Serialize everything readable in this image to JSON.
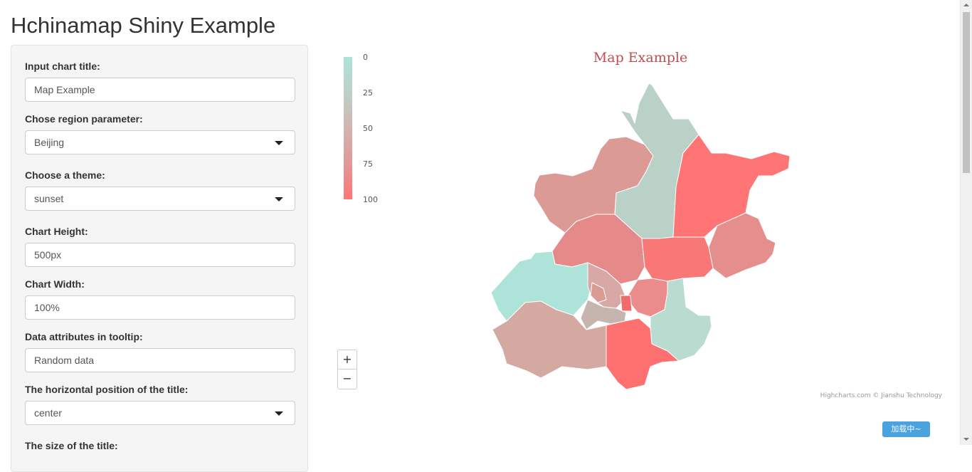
{
  "app": {
    "title": "Hchinamap Shiny Example"
  },
  "sidebar": {
    "fields": [
      {
        "label": "Input chart title:",
        "type": "text",
        "value": "Map Example"
      },
      {
        "label": "Chose region parameter:",
        "type": "select",
        "value": "Beijing"
      },
      {
        "label": "Choose a theme:",
        "type": "select",
        "value": "sunset"
      },
      {
        "label": "Chart Height:",
        "type": "text",
        "value": "500px"
      },
      {
        "label": "Chart Width:",
        "type": "text",
        "value": "100%"
      },
      {
        "label": "Data attributes in tooltip:",
        "type": "text",
        "value": "Random data"
      },
      {
        "label": "The horizontal position of the title:",
        "type": "select",
        "value": "center"
      },
      {
        "label": "The size of the title:",
        "type": "text",
        "value": ""
      }
    ]
  },
  "map": {
    "title": "Map Example",
    "legend": {
      "ticks": [
        "0",
        "25",
        "50",
        "75",
        "100"
      ],
      "colors": [
        "#ade3d8",
        "#bdd0c8",
        "#d3b5ae",
        "#e09898",
        "#ff7575"
      ]
    },
    "zoom_in_label": "+",
    "zoom_out_label": "−",
    "credits": "Highcharts.com © Jianshu Technology"
  },
  "loading": {
    "text": "加载中~"
  },
  "colors": {
    "title_color": "#c0504d"
  }
}
